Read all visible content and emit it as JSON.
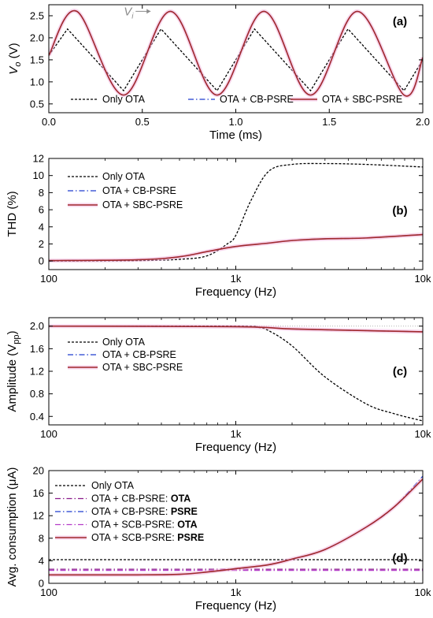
{
  "chart_data": [
    {
      "panel_label": "(a)",
      "type": "line",
      "xlabel": "Time (ms)",
      "ylabel": "V",
      "ylabel_sub": "o",
      "ylabel_suffix": " (V)",
      "xlim": [
        0,
        2.0
      ],
      "ylim": [
        0.3,
        2.75
      ],
      "x_scale": "linear",
      "xticks": [
        0,
        0.5,
        1.0,
        1.5,
        2.0
      ],
      "xtick_labels": [
        "0.0",
        "0.5",
        "1.0",
        "1.5",
        "2.0"
      ],
      "yticks": [
        0.5,
        1.0,
        1.5,
        2.0,
        2.5
      ],
      "ytick_labels": [
        "0.5",
        "1.0",
        "1.5",
        "2.0",
        "2.5"
      ],
      "annotation": {
        "text": "V",
        "sub": "i",
        "x": 0.62,
        "y": 2.6
      },
      "legend_position": "bottom",
      "series": [
        {
          "name": "Only OTA",
          "style": "dotted",
          "color": "#000000",
          "x": [
            0,
            0.1,
            0.25,
            0.4,
            0.6,
            0.75,
            0.9,
            1.1,
            1.25,
            1.4,
            1.6,
            1.75,
            1.9,
            2.0
          ],
          "y": [
            1.6,
            2.2,
            1.5,
            0.8,
            2.2,
            1.5,
            0.8,
            2.2,
            1.5,
            0.8,
            2.2,
            1.5,
            0.8,
            1.5
          ]
        },
        {
          "name": "OTA + CB-PSRE",
          "style": "dashdot",
          "color": "#1e3ccf",
          "x": [
            0,
            0.15,
            0.4,
            0.65,
            0.9,
            1.15,
            1.4,
            1.65,
            1.9,
            2.0
          ],
          "y": [
            1.6,
            2.6,
            0.7,
            2.6,
            0.7,
            2.6,
            0.7,
            2.6,
            0.7,
            1.55
          ]
        },
        {
          "name": "OTA + SBC-PSRE",
          "style": "solid",
          "color": "#a0282d",
          "x": [
            0,
            0.15,
            0.4,
            0.65,
            0.9,
            1.15,
            1.4,
            1.65,
            1.9,
            2.0
          ],
          "y": [
            1.6,
            2.6,
            0.7,
            2.6,
            0.7,
            2.6,
            0.7,
            2.6,
            0.7,
            1.55
          ]
        }
      ]
    },
    {
      "panel_label": "(b)",
      "type": "line",
      "xlabel": "Frequency (Hz)",
      "ylabel": "THD (%)",
      "x_scale": "log",
      "xlim": [
        100,
        10000
      ],
      "ylim": [
        -1,
        12
      ],
      "xticks": [
        100,
        1000,
        10000
      ],
      "xtick_labels": [
        "100",
        "1k",
        "10k"
      ],
      "yticks": [
        0,
        2,
        4,
        6,
        8,
        10,
        12
      ],
      "ytick_labels": [
        "0",
        "2",
        "4",
        "6",
        "8",
        "10",
        "12"
      ],
      "legend_position": "top-left",
      "series": [
        {
          "name": "Only OTA",
          "style": "dotted",
          "color": "#000000",
          "x": [
            100,
            300,
            500,
            700,
            900,
            1000,
            1200,
            1500,
            2000,
            3000,
            5000,
            10000
          ],
          "y": [
            0,
            0.05,
            0.2,
            0.6,
            2.0,
            3.0,
            7.0,
            10.5,
            11.3,
            11.4,
            11.3,
            11.0
          ]
        },
        {
          "name": "OTA + CB-PSRE",
          "style": "dashdot",
          "color": "#1e3ccf",
          "x": [
            100,
            300,
            500,
            700,
            1000,
            1500,
            2000,
            3000,
            5000,
            10000
          ],
          "y": [
            0.05,
            0.15,
            0.5,
            1.1,
            1.7,
            2.1,
            2.4,
            2.6,
            2.7,
            3.1
          ]
        },
        {
          "name": "OTA + SBC-PSRE",
          "style": "solid",
          "color": "#a0282d",
          "x": [
            100,
            300,
            500,
            700,
            1000,
            1500,
            2000,
            3000,
            5000,
            10000
          ],
          "y": [
            0.05,
            0.15,
            0.5,
            1.1,
            1.7,
            2.1,
            2.4,
            2.6,
            2.7,
            3.1
          ]
        }
      ]
    },
    {
      "panel_label": "(c)",
      "type": "line",
      "xlabel": "Frequency (Hz)",
      "ylabel": "Amplitude (V",
      "ylabel_sub": "pp",
      "ylabel_suffix": ")",
      "x_scale": "log",
      "xlim": [
        100,
        10000
      ],
      "ylim": [
        0.25,
        2.15
      ],
      "xticks": [
        100,
        1000,
        10000
      ],
      "xtick_labels": [
        "100",
        "1k",
        "10k"
      ],
      "yticks": [
        0.4,
        0.8,
        1.2,
        1.6,
        2.0
      ],
      "ytick_labels": [
        "0.4",
        "0.8",
        "1.2",
        "1.6",
        "2.0"
      ],
      "legend_position": "middle-left",
      "series": [
        {
          "name": "Only OTA",
          "style": "dotted",
          "color": "#000000",
          "x": [
            100,
            1000,
            1300,
            1500,
            2000,
            3000,
            5000,
            7000,
            10000
          ],
          "y": [
            2.0,
            2.0,
            1.98,
            1.92,
            1.65,
            1.1,
            0.62,
            0.45,
            0.32
          ]
        },
        {
          "name": "OTA + CB-PSRE",
          "style": "dashdot",
          "color": "#1e3ccf",
          "x": [
            100,
            1000,
            2000,
            5000,
            10000
          ],
          "y": [
            2.0,
            1.99,
            1.95,
            1.92,
            1.9
          ]
        },
        {
          "name": "OTA + SBC-PSRE",
          "style": "solid",
          "color": "#a0282d",
          "x": [
            100,
            1000,
            2000,
            5000,
            10000
          ],
          "y": [
            2.0,
            1.99,
            1.95,
            1.92,
            1.9
          ]
        }
      ]
    },
    {
      "panel_label": "(d)",
      "type": "line",
      "xlabel": "Frequency (Hz)",
      "ylabel": "Avg. consumption (μA)",
      "x_scale": "log",
      "xlim": [
        100,
        10000
      ],
      "ylim": [
        0,
        20
      ],
      "xticks": [
        100,
        1000,
        10000
      ],
      "xtick_labels": [
        "100",
        "1k",
        "10k"
      ],
      "yticks": [
        0,
        4,
        8,
        12,
        16,
        20
      ],
      "ytick_labels": [
        "0",
        "4",
        "8",
        "12",
        "16",
        "20"
      ],
      "legend_position": "top-left",
      "series": [
        {
          "name": "Only OTA",
          "bold_suffix": "",
          "style": "dotted",
          "color": "#000000",
          "x": [
            100,
            10000
          ],
          "y": [
            4.2,
            4.2
          ]
        },
        {
          "name": "OTA + CB-PSRE: ",
          "bold_suffix": "OTA",
          "style": "dashdot",
          "color": "#8a1a8a",
          "x": [
            100,
            10000
          ],
          "y": [
            2.5,
            2.5
          ]
        },
        {
          "name": "OTA + CB-PSRE: ",
          "bold_suffix": "PSRE",
          "style": "dashdot",
          "color": "#1e3ccf",
          "x": [
            100,
            300,
            500,
            700,
            1000,
            1500,
            2000,
            3000,
            5000,
            7000,
            10000
          ],
          "y": [
            1.5,
            1.5,
            1.6,
            2.0,
            2.6,
            3.3,
            4.3,
            6.0,
            10.0,
            13.5,
            19.0
          ]
        },
        {
          "name": "OTA + SCB-PSRE: ",
          "bold_suffix": "OTA",
          "style": "dashdot",
          "color": "#b43cc8",
          "x": [
            100,
            10000
          ],
          "y": [
            2.3,
            2.3
          ]
        },
        {
          "name": "OTA + SCB-PSRE: ",
          "bold_suffix": "PSRE",
          "style": "solid",
          "color": "#a0282d",
          "x": [
            100,
            300,
            500,
            700,
            1000,
            1500,
            2000,
            3000,
            5000,
            7000,
            10000
          ],
          "y": [
            1.5,
            1.5,
            1.6,
            2.0,
            2.6,
            3.3,
            4.3,
            6.0,
            10.0,
            13.5,
            18.5
          ]
        }
      ]
    }
  ]
}
